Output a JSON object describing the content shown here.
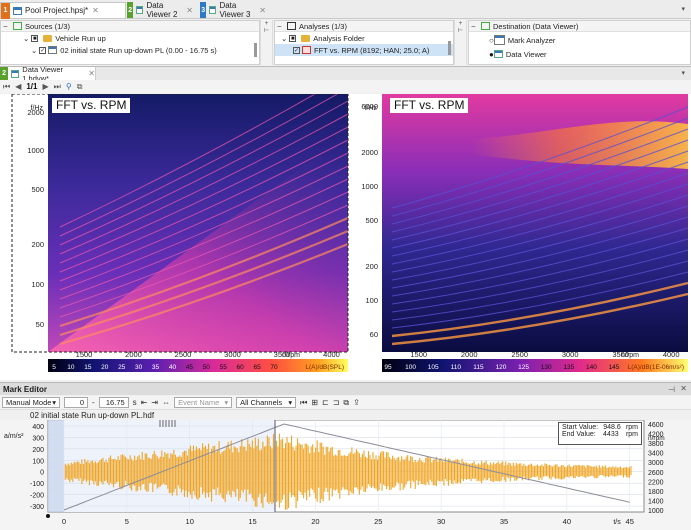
{
  "doc_tabs": [
    {
      "num": "1",
      "num_color": "#e0701a",
      "label": "Pool Project.hpsj*",
      "active": true
    },
    {
      "num": "2",
      "num_color": "#5aa02c",
      "label": "Data Viewer 2",
      "active": false
    },
    {
      "num": "3",
      "num_color": "#2f78c4",
      "label": "Data Viewer 3",
      "active": false
    }
  ],
  "sources": {
    "title": "Sources (1/3)",
    "row1": "Vehicle Run up",
    "row2": "02 initial state Run up-down PL (0.00 - 16.75 s)"
  },
  "analyses": {
    "title": "Analyses (1/3)",
    "row1": "Analysis Folder",
    "row2": "FFT vs. RPM (8192; HAN; 25.0; A)"
  },
  "destination": {
    "title": "Destination (Data Viewer)",
    "row1": "Mark Analyzer",
    "row2": "Data Viewer"
  },
  "viewer": {
    "tab_num": "2",
    "tab_label": "Data Viewer 1.hdvw*",
    "page": "1/1"
  },
  "left_chart": {
    "title": "FFT vs. RPM",
    "y_unit": "f/Hz",
    "y_ticks": [
      "2000",
      "1000",
      "500",
      "200",
      "100",
      "50"
    ],
    "x_ticks": [
      "1500",
      "2000",
      "2500",
      "3000",
      "3500",
      "4000"
    ],
    "x_unit": "n/rpm",
    "scale_ticks": [
      "5",
      "10",
      "15",
      "20",
      "25",
      "30",
      "35",
      "40",
      "45",
      "50",
      "55",
      "60",
      "65",
      "70"
    ],
    "scale_unit": "L(A)/dB(SPL)"
  },
  "right_chart": {
    "title": "FFT vs. RPM",
    "y_unit": "f/Hz",
    "y_ticks": [
      "6000",
      "2000",
      "1000",
      "500",
      "200",
      "100",
      "60"
    ],
    "x_ticks": [
      "1500",
      "2000",
      "2500",
      "3000",
      "3500",
      "4000"
    ],
    "x_unit": "n/rpm",
    "scale_ticks": [
      "95",
      "100",
      "105",
      "110",
      "115",
      "120",
      "125",
      "130",
      "135",
      "140",
      "145"
    ],
    "scale_unit": "L(A)/dB(1E-06m/s²)"
  },
  "mark_editor": {
    "title": "Mark Editor",
    "mode": "Manual Mode",
    "range_start": "0",
    "range_end": "16.75",
    "range_unit": "s",
    "event_placeholder": "Event Name",
    "channels": "All Channels",
    "signal_title": "02 initial state Run up-down PL.hdf",
    "y_unit": "a/m/s²",
    "y_ticks": [
      "400",
      "300",
      "200",
      "100",
      "0",
      "-100",
      "-200",
      "-300"
    ],
    "rpm_unit": "n/rpm",
    "rpm_ticks": [
      "4600",
      "4200",
      "3800",
      "3400",
      "3000",
      "2600",
      "2200",
      "1800",
      "1400",
      "1000"
    ],
    "x_ticks": [
      "0",
      "5",
      "10",
      "15",
      "20",
      "25",
      "30",
      "35",
      "40",
      "45"
    ],
    "x_unit": "t/s",
    "start_label": "Start Value:",
    "start_value": "948.6",
    "end_label": "End Value:",
    "end_value": "4433",
    "value_unit": "rpm"
  },
  "colors": {
    "signal": "#f0a524",
    "accent_tab": "#e0701a",
    "panel_border": "#cfcfcf"
  }
}
